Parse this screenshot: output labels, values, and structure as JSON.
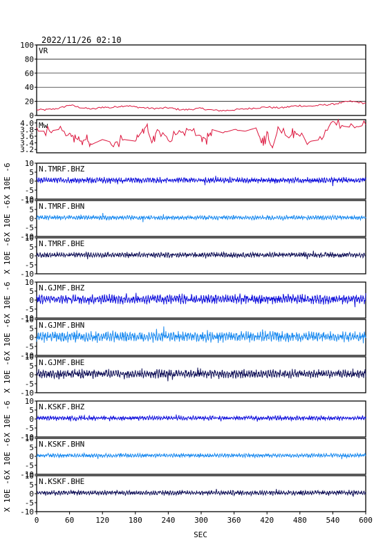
{
  "header": {
    "timestamp": "2022/11/26 02:10"
  },
  "chart_data": {
    "type": "line",
    "x": {
      "label": "SEC",
      "range": [
        0,
        600
      ],
      "ticks": [
        "0",
        "60",
        "120",
        "180",
        "240",
        "300",
        "360",
        "420",
        "480",
        "540",
        "600"
      ]
    },
    "panels": [
      {
        "id": "vr",
        "label": "VR",
        "color": "#dc143c",
        "ylim": [
          0,
          100
        ],
        "grid": true,
        "yticks": [
          "100",
          "80",
          "60",
          "40",
          "20",
          "0"
        ]
      },
      {
        "id": "mw",
        "label": "Mw",
        "color": "#dc143c",
        "ylim": [
          3.1,
          4.1
        ],
        "grid": false,
        "yticks": [
          "4.0",
          "3.8",
          "3.6",
          "3.4",
          "3.2"
        ]
      },
      {
        "id": "tmrf-bhz",
        "label": "N.TMRF.BHZ",
        "color": "#1414dc",
        "ylim": [
          -10,
          10
        ],
        "amp": 1.4,
        "ylabel": "X 10E -6"
      },
      {
        "id": "tmrf-bhn",
        "label": "N.TMRF.BHN",
        "color": "#1e8cf0",
        "ylim": [
          -10,
          10
        ],
        "amp": 1.1,
        "ylabel": "X 10E -6"
      },
      {
        "id": "tmrf-bhe",
        "label": "N.TMRF.BHE",
        "color": "#14145a",
        "ylim": [
          -10,
          10
        ],
        "amp": 1.3,
        "ylabel": "X 10E -6"
      },
      {
        "id": "gjmf-bhz",
        "label": "N.GJMF.BHZ",
        "color": "#1414dc",
        "ylim": [
          -10,
          10
        ],
        "amp": 2.4,
        "ylabel": "X 10E -6"
      },
      {
        "id": "gjmf-bhn",
        "label": "N.GJMF.BHN",
        "color": "#1e8cf0",
        "ylim": [
          -10,
          10
        ],
        "amp": 2.6,
        "ylabel": "X 10E -6"
      },
      {
        "id": "gjmf-bhe",
        "label": "N.GJMF.BHE",
        "color": "#14145a",
        "ylim": [
          -10,
          10
        ],
        "amp": 2.2,
        "ylabel": "X 10E -6"
      },
      {
        "id": "kskf-bhz",
        "label": "N.KSKF.BHZ",
        "color": "#1414dc",
        "ylim": [
          -10,
          10
        ],
        "amp": 1.1,
        "ylabel": "X 10E -6"
      },
      {
        "id": "kskf-bhn",
        "label": "N.KSKF.BHN",
        "color": "#1e8cf0",
        "ylim": [
          -10,
          10
        ],
        "amp": 1.0,
        "ylabel": "X 10E -6"
      },
      {
        "id": "kskf-bhe",
        "label": "N.KSKF.BHE",
        "color": "#14145a",
        "ylim": [
          -10,
          10
        ],
        "amp": 1.2,
        "ylabel": "X 10E -6"
      }
    ],
    "wave_yticks": [
      "10",
      "5",
      "0",
      "-5",
      "-10"
    ],
    "vr_series": {
      "x": [
        0,
        15,
        30,
        45,
        60,
        75,
        90,
        105,
        120,
        135,
        150,
        165,
        180,
        195,
        210,
        225,
        240,
        255,
        270,
        285,
        300,
        315,
        330,
        345,
        360,
        375,
        390,
        405,
        420,
        435,
        450,
        465,
        480,
        495,
        510,
        525,
        540,
        555,
        570,
        585,
        600
      ],
      "y": [
        8,
        8,
        9,
        11,
        15,
        12,
        10,
        9,
        12,
        11,
        13,
        14,
        12,
        11,
        10,
        10,
        11,
        9,
        8,
        9,
        10,
        8,
        7,
        7,
        8,
        9,
        10,
        11,
        12,
        11,
        11,
        13,
        14,
        13,
        14,
        15,
        16,
        18,
        20,
        19,
        17
      ]
    },
    "mw_series": {
      "x": [
        0,
        20,
        40,
        60,
        70,
        80,
        90,
        100,
        120,
        140,
        160,
        180,
        190,
        200,
        210,
        220,
        240,
        260,
        280,
        300,
        310,
        320,
        340,
        360,
        380,
        400,
        410,
        420,
        430,
        440,
        460,
        470,
        480,
        500,
        520,
        540,
        560,
        580,
        600
      ],
      "y": [
        3.75,
        3.75,
        3.8,
        3.7,
        3.55,
        3.45,
        3.5,
        3.35,
        3.5,
        3.4,
        3.5,
        3.45,
        3.7,
        3.9,
        3.4,
        3.8,
        3.55,
        3.7,
        3.8,
        3.6,
        3.5,
        3.8,
        3.7,
        3.8,
        3.75,
        3.85,
        3.4,
        3.6,
        3.25,
        3.8,
        3.55,
        3.75,
        3.6,
        3.45,
        3.5,
        4.05,
        3.9,
        3.85,
        3.95
      ]
    }
  }
}
